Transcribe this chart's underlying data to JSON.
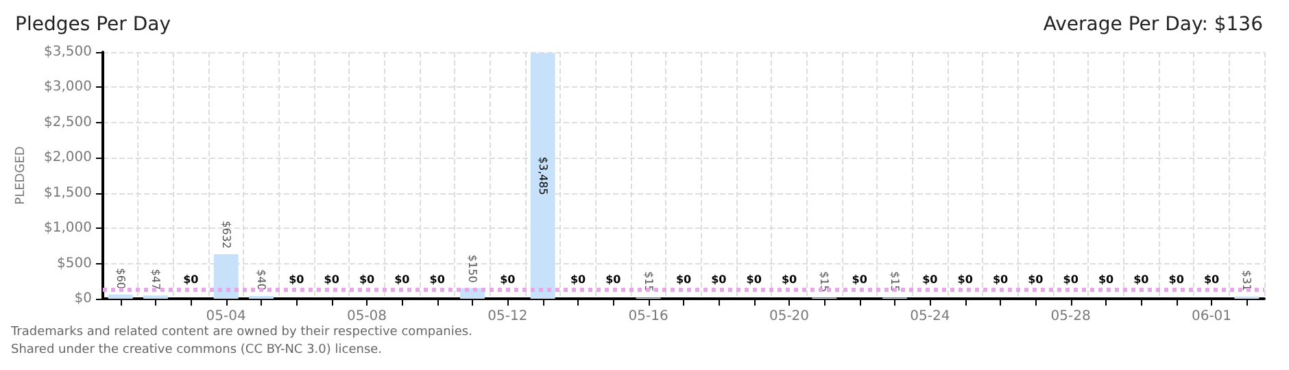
{
  "chart_data": {
    "type": "bar",
    "title": "Pledges Per Day",
    "subtitle": "Average Per Day: $136",
    "ylabel": "PLEDGED",
    "categories": [
      null,
      null,
      null,
      "05-04",
      null,
      null,
      null,
      "05-08",
      null,
      null,
      null,
      "05-12",
      null,
      null,
      null,
      "05-16",
      null,
      null,
      null,
      "05-20",
      null,
      null,
      null,
      "05-24",
      null,
      null,
      null,
      "05-28",
      null,
      null,
      null,
      "06-01",
      null
    ],
    "values": [
      60,
      47,
      0,
      632,
      40,
      0,
      0,
      0,
      0,
      0,
      150,
      0,
      3485,
      0,
      0,
      15,
      0,
      0,
      0,
      0,
      15,
      0,
      15,
      0,
      0,
      0,
      0,
      0,
      0,
      0,
      0,
      0,
      31
    ],
    "value_labels": [
      "$60",
      "$47",
      "$0",
      "$632",
      "$40",
      "$0",
      "$0",
      "$0",
      "$0",
      "$0",
      "$150",
      "$0",
      "$3,485",
      "$0",
      "$0",
      "$15",
      "$0",
      "$0",
      "$0",
      "$0",
      "$15",
      "$0",
      "$15",
      "$0",
      "$0",
      "$0",
      "$0",
      "$0",
      "$0",
      "$0",
      "$0",
      "$0",
      "$31"
    ],
    "color": "#c6e1f9",
    "ylim": [
      0,
      3500
    ],
    "yticks": [
      {
        "value": 0,
        "label": "$0"
      },
      {
        "value": 500,
        "label": "$500"
      },
      {
        "value": 1000,
        "label": "$1,000"
      },
      {
        "value": 1500,
        "label": "$1,500"
      },
      {
        "value": 2000,
        "label": "$2,000"
      },
      {
        "value": 2500,
        "label": "$2,500"
      },
      {
        "value": 3000,
        "label": "$3,000"
      },
      {
        "value": 3500,
        "label": "$3,500"
      }
    ],
    "grid": true,
    "ref_lines": [
      {
        "axis": "y",
        "value": 136,
        "label": null,
        "color": "#e8a6ea",
        "line_style": "dotted"
      }
    ],
    "annotations": [
      "Trademarks and related content are owned by their respective companies.",
      "Shared under the creative commons (CC BY-NC 3.0) license."
    ]
  }
}
